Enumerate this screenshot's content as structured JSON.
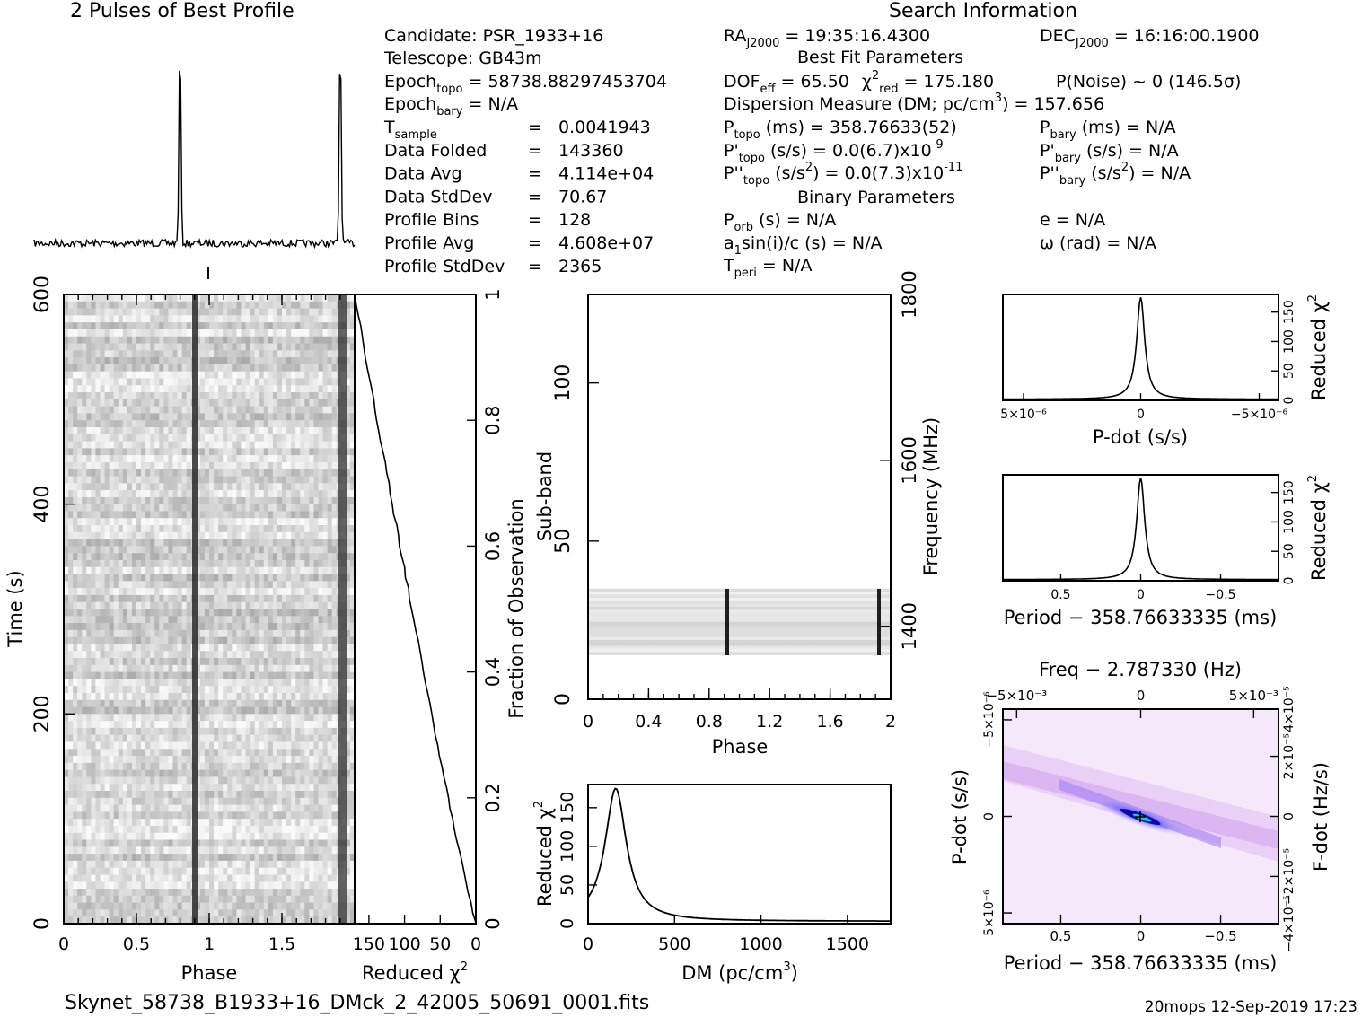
{
  "header": {
    "profile_title": "2 Pulses of Best Profile",
    "search_title": "Search Information",
    "best_fit_title": "Best Fit Parameters",
    "binary_title": "Binary Parameters"
  },
  "info": {
    "candidate": "Candidate:  PSR_1933+16",
    "telescope": "Telescope:  GB43m",
    "epoch_topo": {
      "sub": "topo",
      "value": " = 58738.88297453704"
    },
    "epoch_bary": {
      "sub": "bary",
      "value": " = N/A"
    },
    "table": [
      {
        "label": "T",
        "sub": "sample",
        "value": "0.0041943"
      },
      {
        "label": "Data Folded",
        "value": "143360"
      },
      {
        "label": "Data Avg",
        "value": "4.114e+04"
      },
      {
        "label": "Data StdDev",
        "value": "70.67"
      },
      {
        "label": "Profile Bins",
        "value": "128"
      },
      {
        "label": "Profile Avg",
        "value": "4.608e+07"
      },
      {
        "label": "Profile StdDev",
        "value": "2365"
      }
    ],
    "ra": "= 19:35:16.4300",
    "dec": "= 16:16:00.1900",
    "dof_line": "DOF",
    "dof_value": " = 65.50",
    "chi_value": " = 175.180",
    "pnoise": "P(Noise) ~ 0   (146.5σ)",
    "dm_line": "Dispersion Measure (DM; pc/cm",
    "dm_value": ") = 157.656",
    "ptopo": " (ms) =  358.76633(52)",
    "pbary": " (ms) = N/A",
    "pdtopo": " (s/s) = 0.0(6.7)x10",
    "pdtopo_exp": "-9",
    "pdbary": " (s/s) = N/A",
    "pddtopo": " (s/s",
    "pddtopo_b": ") = 0.0(7.3)x10",
    "pddtopo_exp": "-11",
    "pddbary": " (s/s",
    "pddbary_b": ") = N/A",
    "porb": " (s) = N/A",
    "ecc": "e = N/A",
    "a1sini": "sin(i)/c (s) = N/A",
    "omega": "ω (rad) = N/A",
    "tperi": " = N/A"
  },
  "footer": {
    "filename": "Skynet_58738_B1933+16_DMck_2_42005_50691_0001.fits",
    "stamp": "20mops 12-Sep-2019 17:23"
  },
  "chart_data": [
    {
      "type": "line",
      "name": "profile",
      "title": "2 Pulses of Best Profile",
      "x_range": [
        0,
        2
      ],
      "pulse_phase": [
        0.91,
        1.91
      ]
    },
    {
      "type": "heatmap",
      "name": "time-phase",
      "xlabel": "Phase",
      "ylabel": "Time (s)",
      "xlim": [
        0,
        2
      ],
      "ylim": [
        0,
        600
      ],
      "x_ticks": [
        "0",
        "0.5",
        "1",
        "1.5"
      ],
      "y_ticks": [
        "0",
        "200",
        "400",
        "600"
      ],
      "pulse_phase": [
        0.91,
        1.91
      ]
    },
    {
      "type": "line",
      "name": "chi2-vs-time",
      "xlabel": "Reduced χ²",
      "ylabel": "Fraction of Observation",
      "x_ticks": [
        "150",
        "100",
        "50",
        "0"
      ],
      "y_ticks": [
        "0",
        "0.2",
        "0.4",
        "0.6",
        "0.8",
        "1"
      ],
      "xlim": [
        170,
        0
      ],
      "ylim": [
        0,
        1
      ]
    },
    {
      "type": "heatmap",
      "name": "subband-phase",
      "xlabel": "Phase",
      "ylabel": "Sub-band",
      "ylabel_right": "Frequency (MHz)",
      "xlim": [
        0,
        2
      ],
      "ylim": [
        0,
        128
      ],
      "x_ticks": [
        "0",
        "0.4",
        "0.8",
        "1.2",
        "1.6",
        "2"
      ],
      "y_ticks": [
        "0",
        "50",
        "100"
      ],
      "freq_ticks": [
        "1400",
        "1600",
        "1800"
      ],
      "band_subbands": [
        14,
        35
      ]
    },
    {
      "type": "line",
      "name": "chi2-vs-dm",
      "xlabel": "DM (pc/cm³)",
      "ylabel": "Reduced χ²",
      "x_ticks": [
        "0",
        "500",
        "1000",
        "1500"
      ],
      "y_ticks": [
        "0",
        "50",
        "100",
        "150"
      ],
      "xlim": [
        0,
        1750
      ],
      "ylim": [
        0,
        180
      ],
      "peak_dm": 160,
      "peak_chi2": 175
    },
    {
      "type": "line",
      "name": "chi2-vs-pdot",
      "xlabel": "P-dot (s/s)",
      "ylabel": "Reduced χ²",
      "x_ticks": [
        "5×10⁻⁶",
        "0",
        "−5×10⁻⁶"
      ],
      "y_ticks": [
        "0",
        "50",
        "100",
        "150"
      ],
      "ylim": [
        0,
        180
      ]
    },
    {
      "type": "line",
      "name": "chi2-vs-period",
      "xlabel": "Period − 358.76633335 (ms)",
      "ylabel": "Reduced χ²",
      "x_ticks": [
        "0.5",
        "0",
        "−0.5"
      ],
      "y_ticks": [
        "0",
        "50",
        "100",
        "150"
      ],
      "xlim": [
        1,
        -1
      ],
      "ylim": [
        0,
        180
      ]
    },
    {
      "type": "heatmap",
      "name": "p-pdot",
      "title": "Freq − 2.787330 (Hz)",
      "xlabel": "Period − 358.76633335 (ms)",
      "ylabel": "P-dot (s/s)",
      "ylabel_right": "F-dot (Hz/s)",
      "x_ticks": [
        "0.5",
        "0",
        "−0.5"
      ],
      "top_ticks": [
        "−5×10⁻³",
        "0",
        "5×10⁻³"
      ],
      "y_ticks": [
        "5×10⁻⁶",
        "0",
        "−5×10⁻⁶"
      ],
      "right_ticks": [
        "−4×10⁻⁵",
        "−2×10⁻⁵",
        "0",
        "2×10⁻⁵",
        "4×10⁻⁵"
      ]
    }
  ]
}
